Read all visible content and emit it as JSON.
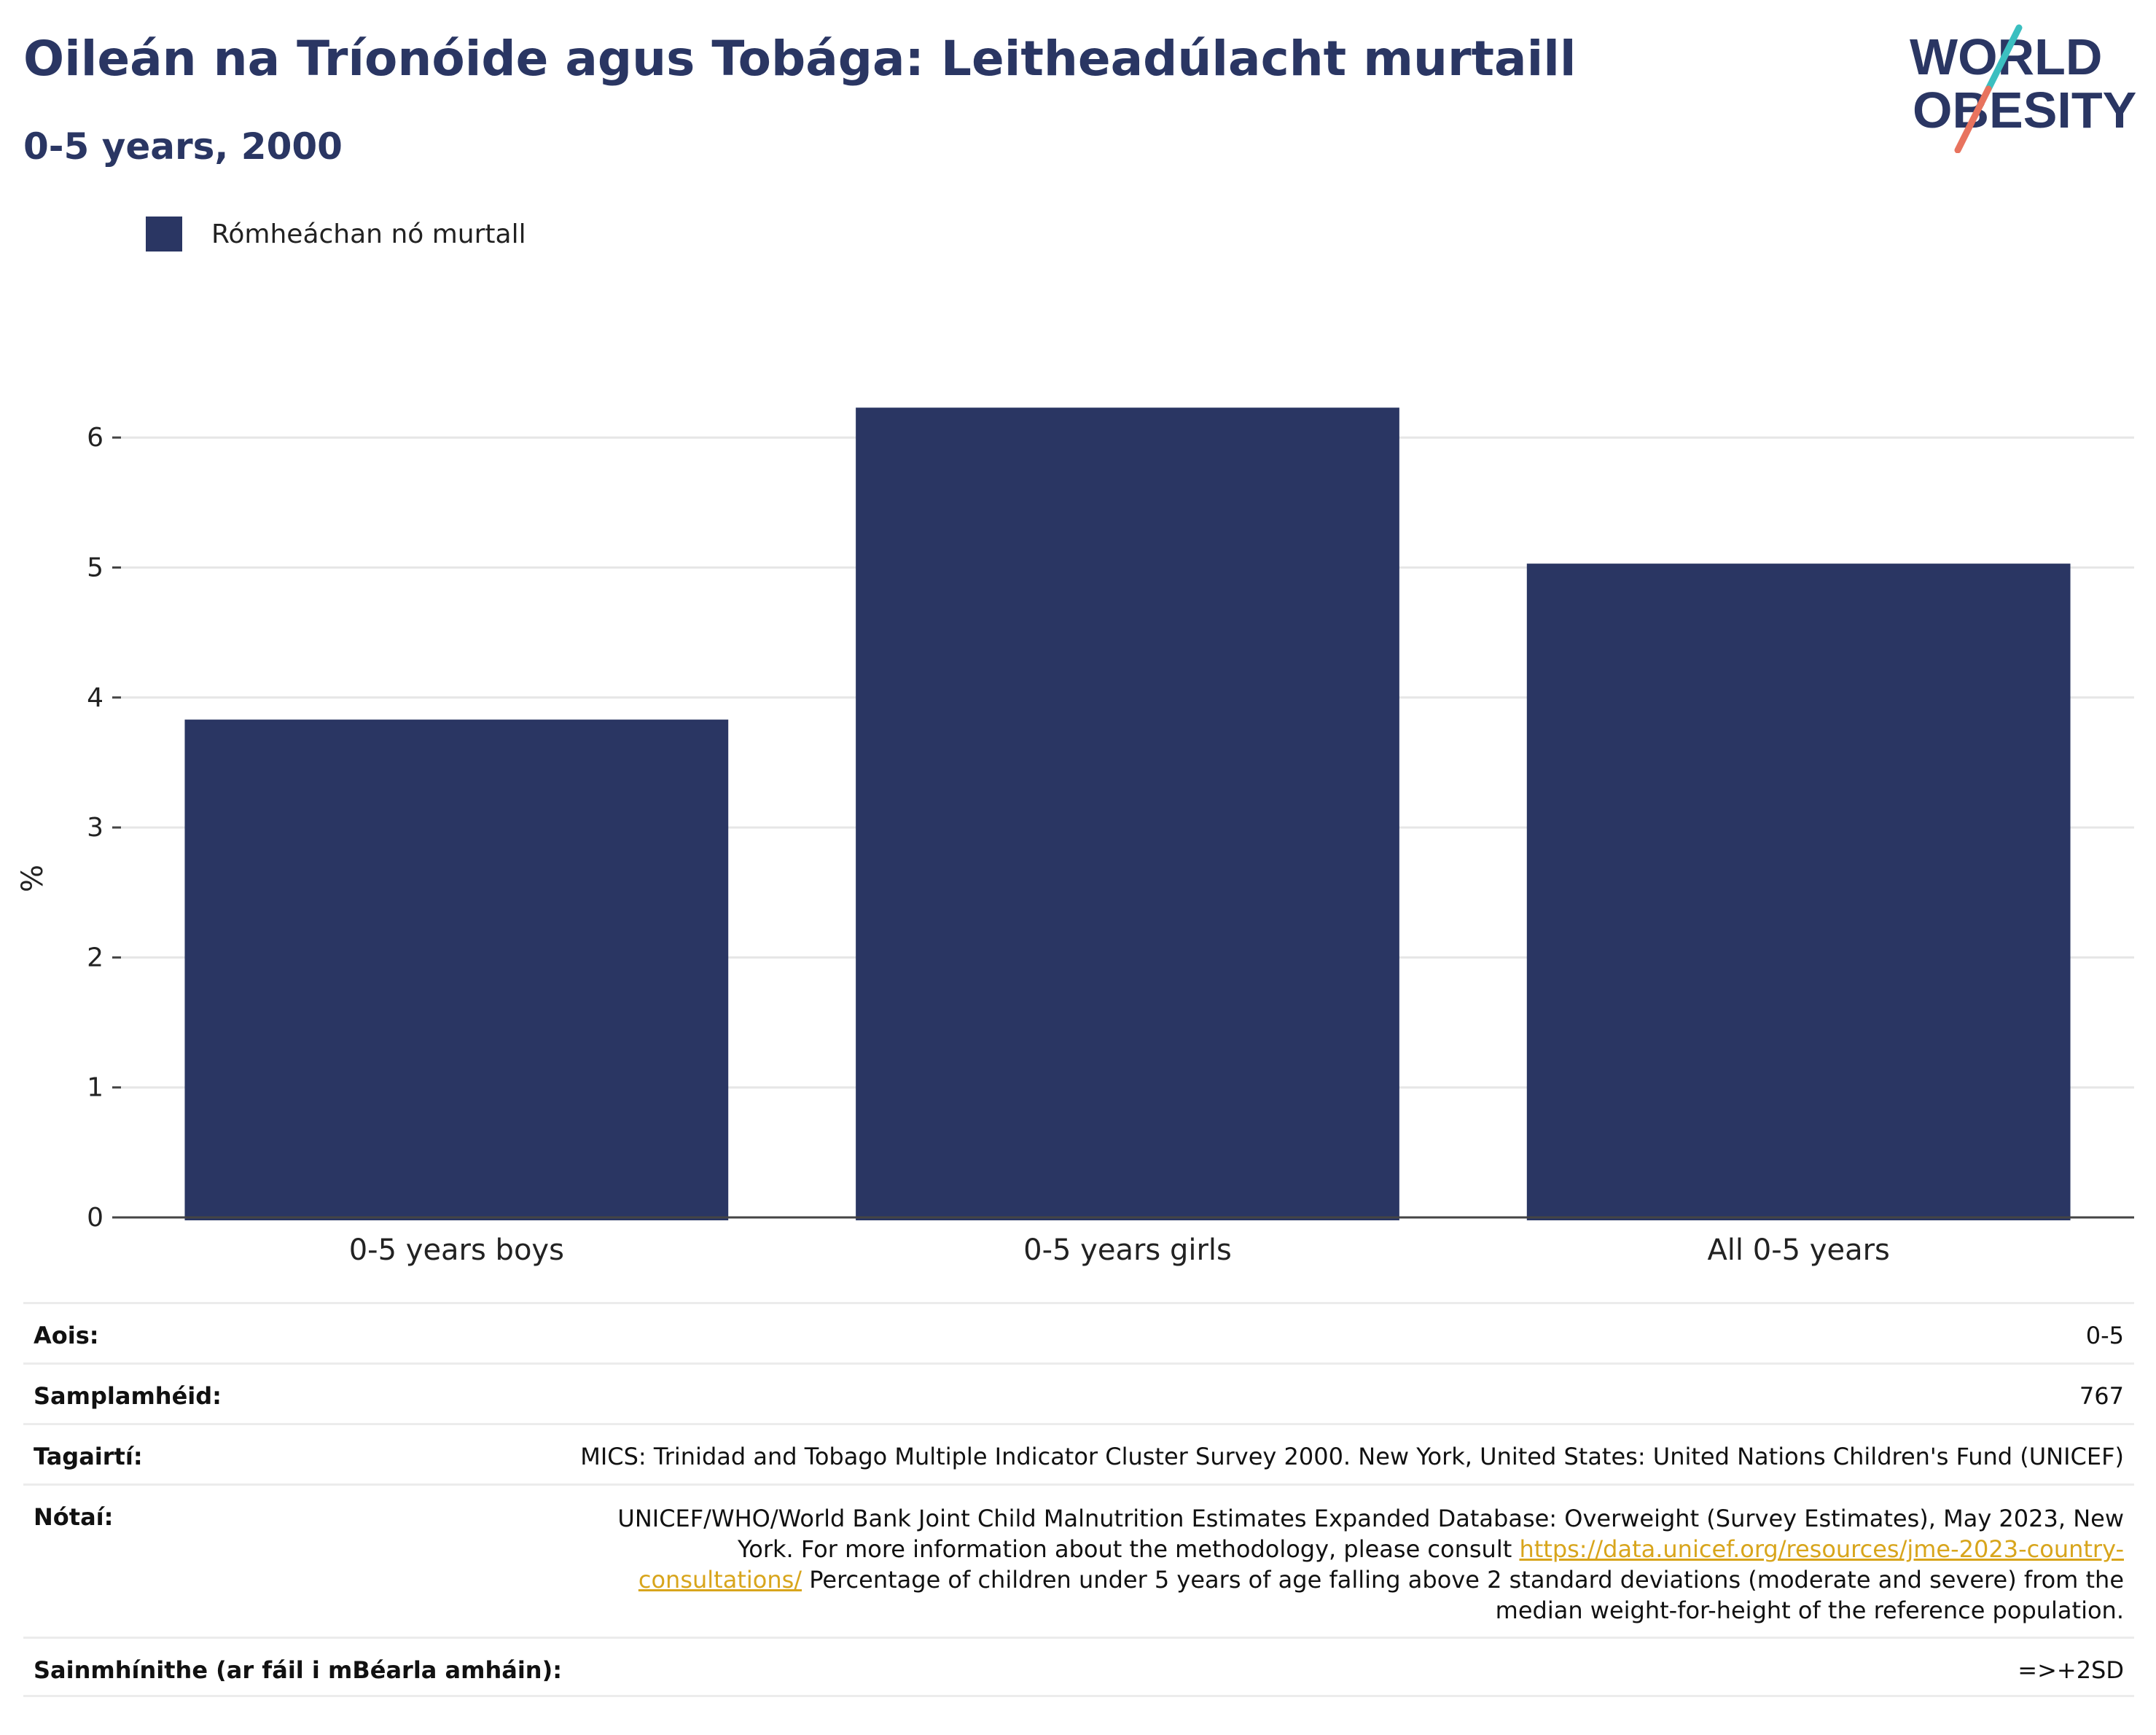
{
  "header": {
    "title": "Oileán na Tríonóide agus Tobága: Leitheadúlacht murtaill",
    "subtitle": "0-5 years, 2000"
  },
  "logo": {
    "line1": "WORLD",
    "line2": "OBESITY",
    "colors": {
      "navy": "#2a3663",
      "teal": "#3bbfc0",
      "coral": "#e8735e"
    }
  },
  "legend": {
    "label": "Rómheáchan nó murtall",
    "color": "#2a3663"
  },
  "chart_data": {
    "type": "bar",
    "categories": [
      "0-5 years boys",
      "0-5 years girls",
      "All 0-5 years"
    ],
    "series": [
      {
        "name": "Rómheáchan nó murtall",
        "values": [
          3.83,
          6.23,
          5.03
        ],
        "color": "#2a3663"
      }
    ],
    "ylabel": "%",
    "xlabel": "",
    "ylim": [
      0,
      6.5
    ],
    "yticks": [
      0,
      1,
      2,
      3,
      4,
      5,
      6
    ],
    "grid": true
  },
  "info": {
    "age": {
      "label": "Aois:",
      "value": "0-5"
    },
    "sample": {
      "label": "Samplamhéid:",
      "value": "767"
    },
    "refs": {
      "label": "Tagairtí:",
      "value": "MICS: Trinidad and Tobago Multiple Indicator Cluster Survey 2000. New York, United States: United Nations Children's Fund (UNICEF)"
    },
    "notes": {
      "label": "Nótaí:",
      "text_before": "UNICEF/WHO/World Bank Joint Child Malnutrition Estimates Expanded Database: Overweight (Survey Estimates), May 2023, New York. For more information about the methodology, please consult ",
      "link": "https://data.unicef.org/resources/jme-2023-country-consultations/",
      "text_after": " Percentage of children under 5 years of age falling above 2 standard deviations (moderate and severe) from the median weight-for-height of the reference population."
    },
    "definitions": {
      "label": "Sainmhínithe (ar fáil i mBéarla amháin):",
      "value": "=>+2SD"
    }
  }
}
